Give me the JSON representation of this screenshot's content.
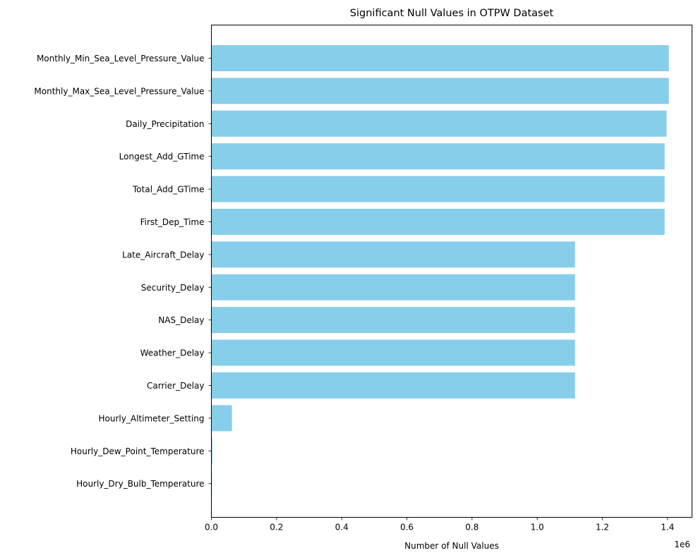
{
  "chart_data": {
    "type": "bar",
    "orientation": "horizontal",
    "title": "Significant Null Values in OTPW Dataset",
    "xlabel": "Number of Null Values",
    "ylabel": "",
    "x_offset_label": "1e6",
    "xlim": [
      0,
      1.475
    ],
    "x_ticks": [
      0,
      0.2,
      0.4,
      0.6,
      0.8,
      1.0,
      1.2,
      1.4
    ],
    "x_tick_labels": [
      "0.0",
      "0.2",
      "0.4",
      "0.6",
      "0.8",
      "1.0",
      "1.2",
      "1.4"
    ],
    "grid": false,
    "bar_color": "#87CEEB",
    "categories": [
      "Monthly_Min_Sea_Level_Pressure_Value",
      "Monthly_Max_Sea_Level_Pressure_Value",
      "Daily_Precipitation",
      "Longest_Add_GTime",
      "Total_Add_GTime",
      "First_Dep_Time",
      "Late_Aircraft_Delay",
      "Security_Delay",
      "NAS_Delay",
      "Weather_Delay",
      "Carrier_Delay",
      "Hourly_Altimeter_Setting",
      "Hourly_Dew_Point_Temperature",
      "Hourly_Dry_Bulb_Temperature"
    ],
    "values": [
      1.404,
      1.404,
      1.397,
      1.391,
      1.391,
      1.391,
      1.116,
      1.116,
      1.116,
      1.116,
      1.116,
      0.063,
      0.003,
      0.002
    ]
  }
}
